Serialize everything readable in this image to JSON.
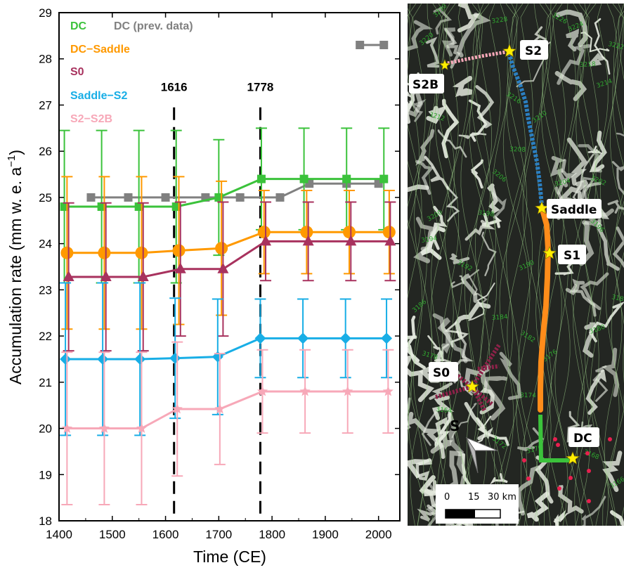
{
  "chart_data": {
    "type": "scatter",
    "xlabel": "Time (CE)",
    "ylabel": "Accumulation rate (mm w. e. a",
    "ylabel_sup": "−1",
    "ylabel_close": ")",
    "xlim": [
      1400,
      2040
    ],
    "ylim": [
      18,
      29
    ],
    "xticks": [
      1400,
      1500,
      1600,
      1700,
      1800,
      1900,
      2000
    ],
    "yticks": [
      18,
      19,
      20,
      21,
      22,
      23,
      24,
      25,
      26,
      27,
      28,
      29
    ],
    "grid": false,
    "legend_position": "top-left",
    "vlines": [
      {
        "x": 1616,
        "label": "1616"
      },
      {
        "x": 1778,
        "label": "1778"
      }
    ],
    "series": [
      {
        "name": "DC",
        "color": "#3bc23b",
        "marker": "square",
        "x": [
          1410,
          1480,
          1550,
          1620,
          1700,
          1780,
          1860,
          1940,
          2010
        ],
        "y": [
          24.8,
          24.8,
          24.8,
          24.8,
          25.0,
          25.4,
          25.4,
          25.4,
          25.4
        ],
        "err": [
          1.65,
          1.65,
          1.65,
          1.65,
          1.25,
          1.1,
          1.1,
          1.1,
          1.1
        ]
      },
      {
        "name": "DC (prev. data)",
        "color": "#808080",
        "marker": "square",
        "x": [
          1460,
          1530,
          1600,
          1675,
          1740,
          1815,
          1870,
          1940,
          2000
        ],
        "y": [
          25.0,
          25.0,
          25.0,
          25.0,
          25.0,
          25.0,
          25.3,
          25.3,
          25.3
        ]
      },
      {
        "name": "DC (prev. data)",
        "color": "#808080",
        "marker": "square",
        "x": [
          1965,
          2010
        ],
        "y": [
          28.3,
          28.3
        ]
      },
      {
        "name": "DC−Saddle",
        "color": "#ff9900",
        "marker": "circle",
        "x": [
          1415,
          1485,
          1555,
          1625,
          1705,
          1785,
          1865,
          1945,
          2020
        ],
        "y": [
          23.8,
          23.8,
          23.8,
          23.85,
          23.9,
          24.25,
          24.25,
          24.25,
          24.25
        ],
        "err": [
          1.65,
          1.65,
          1.65,
          1.6,
          1.45,
          0.9,
          0.9,
          0.9,
          0.9
        ]
      },
      {
        "name": "S0",
        "color": "#a8325e",
        "marker": "triangle",
        "x": [
          1418,
          1488,
          1558,
          1628,
          1708,
          1788,
          1868,
          1948,
          2022
        ],
        "y": [
          23.28,
          23.28,
          23.28,
          23.45,
          23.45,
          24.05,
          24.05,
          24.05,
          24.05
        ],
        "err": [
          1.6,
          1.6,
          1.6,
          1.45,
          1.45,
          0.85,
          0.85,
          0.85,
          0.85
        ]
      },
      {
        "name": "Saddle−S2",
        "color": "#18aee6",
        "marker": "diamond",
        "x": [
          1412,
          1482,
          1552,
          1618,
          1698,
          1778,
          1858,
          1938,
          2015
        ],
        "y": [
          21.5,
          21.5,
          21.5,
          21.52,
          21.55,
          21.95,
          21.95,
          21.95,
          21.95
        ],
        "err": [
          1.65,
          1.65,
          1.65,
          1.3,
          1.25,
          0.85,
          0.85,
          0.85,
          0.85
        ]
      },
      {
        "name": "S2−S2B",
        "color": "#f7a8b8",
        "marker": "star",
        "x": [
          1415,
          1485,
          1555,
          1622,
          1702,
          1782,
          1862,
          1942,
          2018
        ],
        "y": [
          20.0,
          20.0,
          20.0,
          20.42,
          20.42,
          20.8,
          20.8,
          20.8,
          20.8
        ],
        "err": [
          1.65,
          1.65,
          1.65,
          1.45,
          1.2,
          0.9,
          0.9,
          0.9,
          0.9
        ]
      }
    ]
  },
  "legend_entries": [
    "DC",
    "DC (prev. data)",
    "DC−Saddle",
    "S0",
    "Saddle−S2",
    "S2−S2B"
  ],
  "map": {
    "site_labels": {
      "S2": "S2",
      "S2B": "S2B",
      "Saddle": "Saddle",
      "S1": "S1",
      "S0": "S0",
      "DC": "DC"
    },
    "north_arrow_label": "S",
    "scalebar_ticks": [
      "0",
      "15",
      "30 km"
    ],
    "contour_labels": [
      "3230",
      "3228",
      "3226",
      "3224",
      "3222",
      "3220",
      "3218",
      "3216",
      "3214",
      "3212",
      "3210",
      "3208",
      "3206",
      "3204",
      "3202",
      "3200",
      "3198",
      "3196",
      "3194",
      "3192",
      "3190",
      "3188",
      "3186",
      "3184",
      "3182",
      "3180",
      "3178",
      "3176",
      "3174",
      "3172",
      "3170",
      "3168",
      "3166",
      "3164"
    ],
    "track_colors": {
      "s2_s2b": "#f7a8b8",
      "saddle_s2": "#2b7fc1",
      "dc_saddle": "#ff8c1a",
      "dc": "#3bc23b",
      "s0": "#8b2248",
      "points": "#e8204f",
      "star": "#ffee00"
    }
  }
}
